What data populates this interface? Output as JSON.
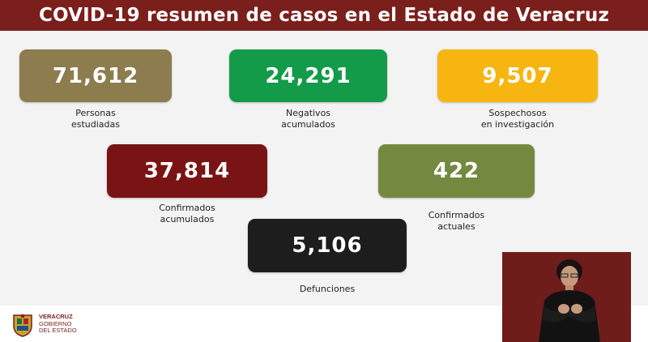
{
  "header": {
    "title": "COVID-19 resumen de casos en el Estado de Veracruz"
  },
  "stats": {
    "estudiadas": {
      "value": "71,612",
      "label_line1": "Personas",
      "label_line2": "estudiadas",
      "color": "#8c7c4e"
    },
    "negativos": {
      "value": "24,291",
      "label_line1": "Negativos",
      "label_line2": "acumulados",
      "color": "#139b4a"
    },
    "sospechosos": {
      "value": "9,507",
      "label_line1": "Sospechosos",
      "label_line2": "en investigación",
      "color": "#f6b511"
    },
    "confirmados": {
      "value": "37,814",
      "label_line1": "Confirmados",
      "label_line2": "acumulados",
      "color": "#7a1414"
    },
    "actuales": {
      "value": "422",
      "label_line1": "Confirmados",
      "label_line2": "actuales",
      "color": "#74893f"
    },
    "defunciones": {
      "value": "5,106",
      "label_line1": "Defunciones",
      "color": "#1d1d1d"
    }
  },
  "footer": {
    "logo_line1": "VERACRUZ",
    "logo_line2": "GOBIERNO",
    "logo_line3": "DEL ESTADO",
    "logo_icon": "veracruz-crest-icon"
  }
}
